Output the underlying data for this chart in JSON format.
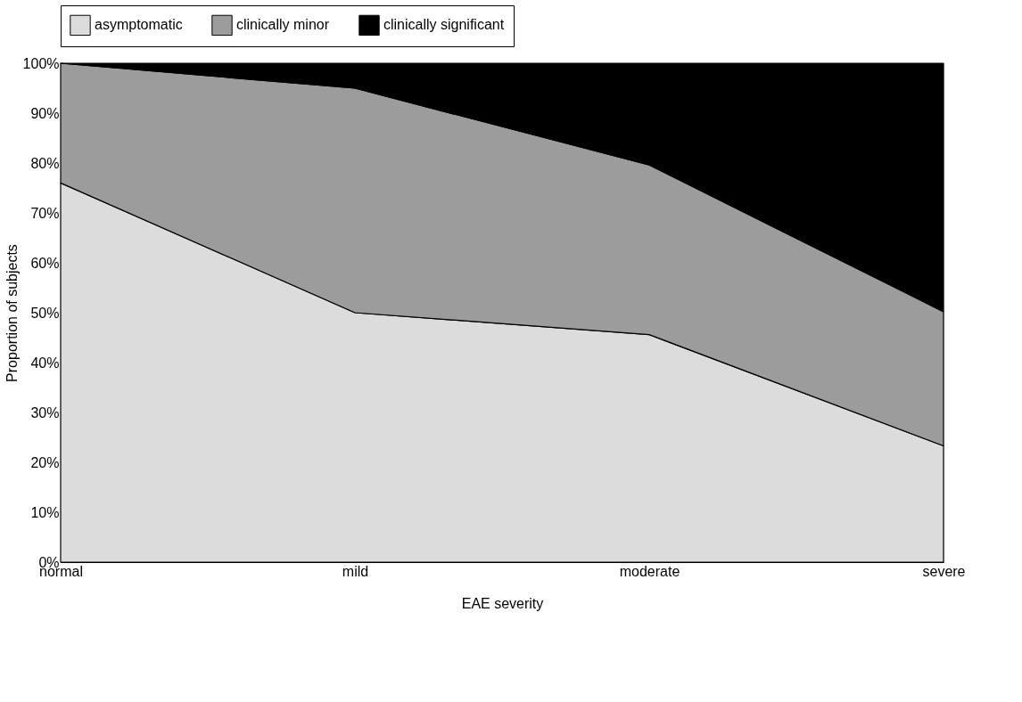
{
  "chart_data": {
    "type": "area",
    "stacked": true,
    "xlabel": "EAE severity",
    "ylabel": "Proportion of subjects",
    "categories": [
      "normal",
      "mild",
      "moderate",
      "severe"
    ],
    "series": [
      {
        "name": "asymptomatic",
        "color": "#dbdcdb",
        "values": [
          76,
          50,
          45.6,
          23.3
        ]
      },
      {
        "name": "clinically minor",
        "color": "#9c9c9c",
        "values": [
          24,
          45,
          34,
          26.9
        ]
      },
      {
        "name": "clinically significant",
        "color": "#000000",
        "values": [
          0,
          5,
          20.4,
          49.8
        ]
      }
    ],
    "ylim": [
      0,
      100
    ],
    "yticks": [
      {
        "value": 0,
        "label": "0%"
      },
      {
        "value": 10,
        "label": "10%"
      },
      {
        "value": 20,
        "label": "20%"
      },
      {
        "value": 30,
        "label": "30%"
      },
      {
        "value": 40,
        "label": "40%"
      },
      {
        "value": 50,
        "label": "50%"
      },
      {
        "value": 60,
        "label": "60%"
      },
      {
        "value": 70,
        "label": "70%"
      },
      {
        "value": 80,
        "label": "80%"
      },
      {
        "value": 90,
        "label": "90%"
      },
      {
        "value": 100,
        "label": "100%"
      }
    ],
    "legend": "top"
  }
}
